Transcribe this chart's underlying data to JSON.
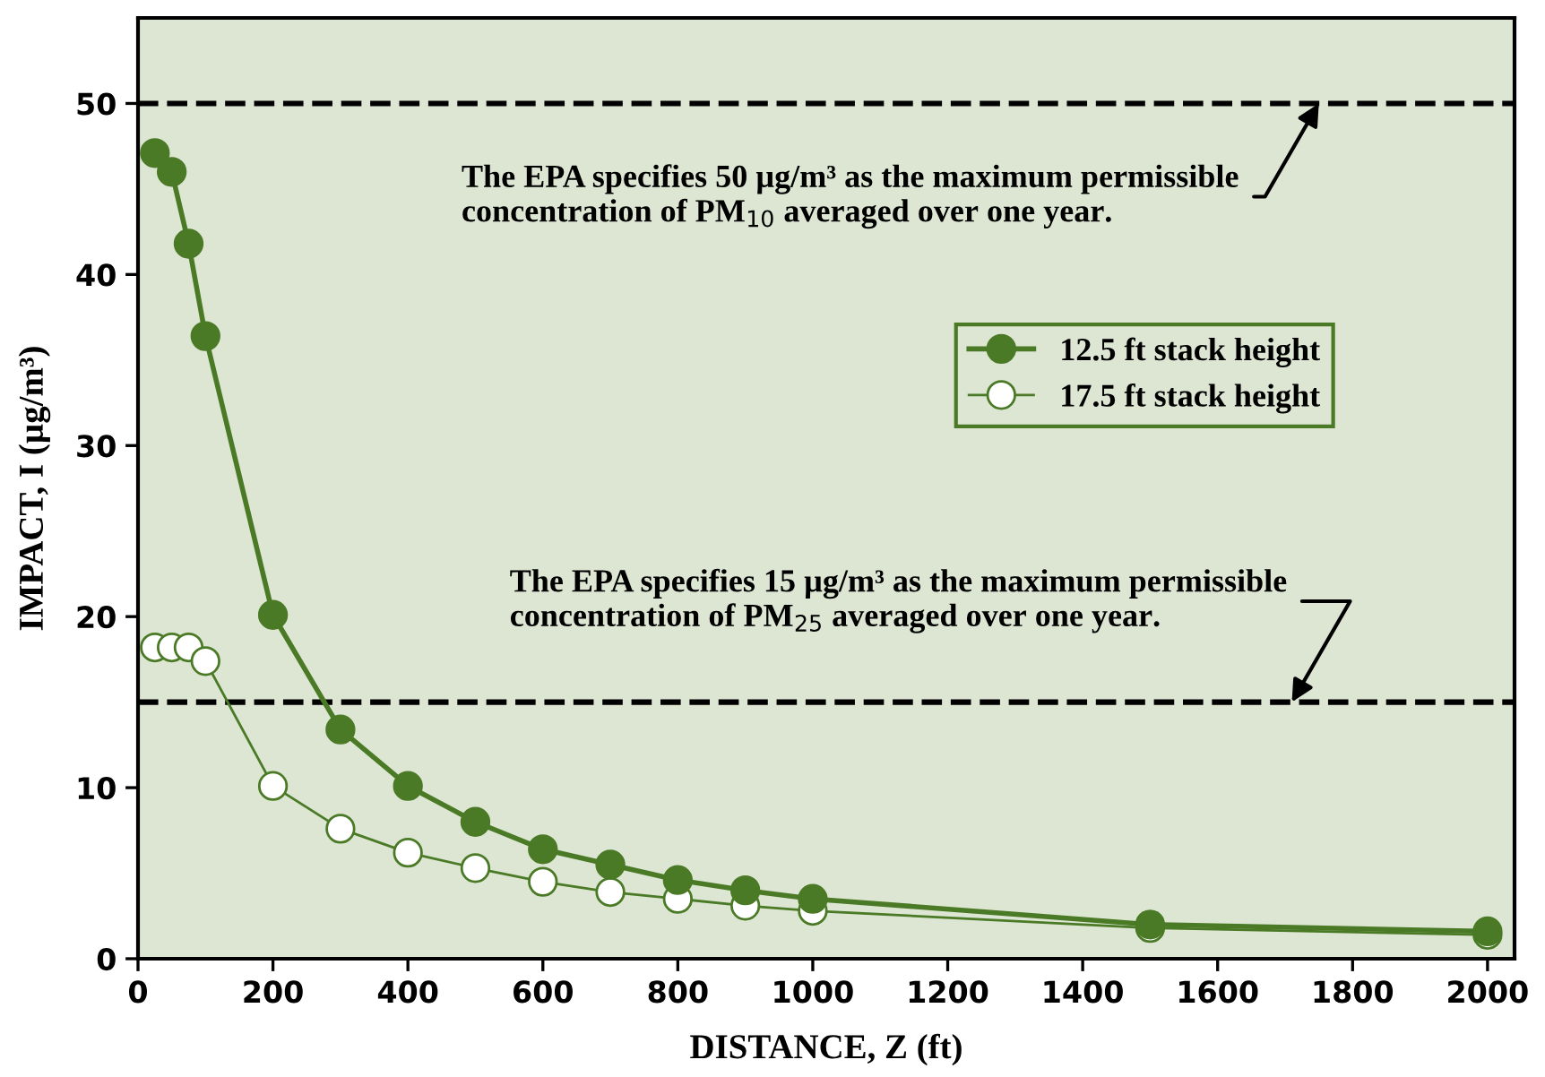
{
  "chart_data": {
    "type": "line",
    "xlabel": "DISTANCE, Z (ft)",
    "ylabel": "IMPACT, I (µg/m³)",
    "xlim": [
      0,
      2040
    ],
    "ylim": [
      0,
      55
    ],
    "xticks": [
      0,
      200,
      400,
      600,
      800,
      1000,
      1200,
      1400,
      1600,
      1800,
      2000
    ],
    "yticks": [
      0,
      10,
      20,
      30,
      40,
      50
    ],
    "x": [
      25,
      50,
      75,
      100,
      200,
      300,
      400,
      500,
      600,
      700,
      800,
      900,
      1000,
      1500,
      2000
    ],
    "series": [
      {
        "name": "12.5 ft stack height",
        "color": "#4a7a25",
        "marker": "circle",
        "values": [
          47.1,
          46.0,
          41.8,
          36.4,
          20.1,
          13.4,
          10.1,
          8.0,
          6.4,
          5.5,
          4.6,
          4.0,
          3.5,
          2.0,
          1.6
        ]
      },
      {
        "name": "17.5 ft stack height",
        "color": "#4a7a25",
        "marker": "circle",
        "values": [
          18.2,
          18.2,
          18.2,
          17.4,
          10.1,
          7.6,
          6.2,
          5.3,
          4.5,
          3.9,
          3.5,
          3.1,
          2.8,
          1.8,
          1.4
        ]
      }
    ],
    "ref_lines": [
      {
        "axis": "y",
        "value": 50,
        "label": null,
        "color": "#000000",
        "line_style": "dashed"
      },
      {
        "axis": "y",
        "value": 15,
        "label": null,
        "color": "#000000",
        "line_style": "dashed"
      }
    ],
    "annotations": [
      {
        "text": "The EPA specifies 50 µg/m³ as the maximum permissible\nconcentration of PM$_{10}$ averaged over one year.",
        "x": 1750,
        "y": 50
      },
      {
        "text": "The EPA specifies 15 µg/m³ as the maximum permissible\nconcentration of PM$_{25}$ averaged over one year.",
        "x": 1710,
        "y": 15
      }
    ],
    "grid": false,
    "legend": "right"
  }
}
